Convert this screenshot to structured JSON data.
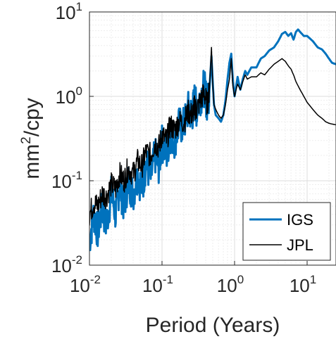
{
  "chart_data": {
    "type": "line",
    "title": "",
    "xlabel": "Period (Years)",
    "ylabel_base": "mm",
    "ylabel_exp": "2",
    "ylabel_suffix": "/cpy",
    "xscale": "log",
    "yscale": "log",
    "xlim": [
      0.01,
      25
    ],
    "ylim": [
      0.01,
      10
    ],
    "grid": true,
    "legend_location": "bottom-right",
    "x_ticks": [
      {
        "base": "10",
        "exp": "-2",
        "value": 0.01
      },
      {
        "base": "10",
        "exp": "-1",
        "value": 0.1
      },
      {
        "base": "10",
        "exp": "0",
        "value": 1
      },
      {
        "base": "10",
        "exp": "1",
        "value": 10
      }
    ],
    "y_ticks": [
      {
        "base": "10",
        "exp": "-2",
        "value": 0.01
      },
      {
        "base": "10",
        "exp": "-1",
        "value": 0.1
      },
      {
        "base": "10",
        "exp": "0",
        "value": 1
      },
      {
        "base": "10",
        "exp": "1",
        "value": 10
      }
    ],
    "series": [
      {
        "name": "IGS",
        "color": "#0072BD",
        "width": 3,
        "x": [
          0.01,
          0.0115,
          0.013,
          0.015,
          0.017,
          0.02,
          0.023,
          0.026,
          0.03,
          0.034,
          0.04,
          0.046,
          0.053,
          0.06,
          0.07,
          0.08,
          0.09,
          0.1,
          0.115,
          0.13,
          0.15,
          0.17,
          0.2,
          0.23,
          0.26,
          0.28,
          0.3,
          0.34,
          0.38,
          0.42,
          0.45,
          0.48,
          0.5,
          0.52,
          0.55,
          0.6,
          0.65,
          0.7,
          0.75,
          0.8,
          0.85,
          0.9,
          0.95,
          1.0,
          1.05,
          1.1,
          1.2,
          1.3,
          1.4,
          1.5,
          1.7,
          2.0,
          2.3,
          2.6,
          3.0,
          3.5,
          4.0,
          4.5,
          5.0,
          5.5,
          6.0,
          6.5,
          7.0,
          7.5,
          8.0,
          9.0,
          10.0,
          12.0,
          14.0,
          16.0,
          18.0,
          20.0,
          22.0,
          25.0
        ],
        "y": [
          0.02,
          0.04,
          0.025,
          0.05,
          0.03,
          0.07,
          0.04,
          0.09,
          0.05,
          0.1,
          0.07,
          0.12,
          0.08,
          0.16,
          0.11,
          0.2,
          0.15,
          0.28,
          0.2,
          0.35,
          0.3,
          0.45,
          0.45,
          0.7,
          0.6,
          0.9,
          0.7,
          1.0,
          1.3,
          0.8,
          1.2,
          3.0,
          1.5,
          0.8,
          0.6,
          0.55,
          0.5,
          0.6,
          0.9,
          1.6,
          2.5,
          3.2,
          1.5,
          1.0,
          1.3,
          1.7,
          1.2,
          1.6,
          2.0,
          1.8,
          2.2,
          2.2,
          2.8,
          3.0,
          3.5,
          3.8,
          4.5,
          5.5,
          5.8,
          5.2,
          5.6,
          4.7,
          5.8,
          6.2,
          5.8,
          5.2,
          5.2,
          4.5,
          3.8,
          3.6,
          3.2,
          2.8,
          2.5,
          2.4
        ]
      },
      {
        "name": "JPL",
        "color": "#000000",
        "width": 1.5,
        "x": [
          0.01,
          0.0115,
          0.013,
          0.015,
          0.017,
          0.02,
          0.023,
          0.026,
          0.03,
          0.034,
          0.04,
          0.046,
          0.053,
          0.06,
          0.07,
          0.08,
          0.09,
          0.1,
          0.115,
          0.13,
          0.15,
          0.17,
          0.2,
          0.23,
          0.26,
          0.28,
          0.3,
          0.34,
          0.38,
          0.42,
          0.45,
          0.48,
          0.5,
          0.52,
          0.55,
          0.6,
          0.65,
          0.7,
          0.75,
          0.8,
          0.85,
          0.9,
          0.95,
          1.0,
          1.05,
          1.1,
          1.2,
          1.3,
          1.4,
          1.5,
          1.7,
          2.0,
          2.3,
          2.6,
          3.0,
          3.5,
          4.0,
          4.5,
          5.0,
          5.5,
          6.0,
          6.5,
          7.0,
          8.0,
          9.0,
          10.0,
          12.0,
          14.0,
          16.0,
          18.0,
          20.0,
          22.0,
          25.0
        ],
        "y": [
          0.04,
          0.055,
          0.05,
          0.07,
          0.065,
          0.09,
          0.08,
          0.12,
          0.1,
          0.14,
          0.12,
          0.17,
          0.15,
          0.22,
          0.2,
          0.28,
          0.25,
          0.35,
          0.3,
          0.45,
          0.4,
          0.5,
          0.5,
          0.65,
          0.6,
          0.75,
          0.7,
          0.9,
          1.1,
          0.8,
          1.2,
          3.8,
          1.4,
          0.8,
          0.7,
          0.6,
          0.55,
          0.6,
          0.8,
          1.2,
          1.6,
          2.8,
          1.3,
          1.0,
          1.2,
          1.4,
          1.2,
          1.5,
          1.8,
          1.6,
          1.7,
          1.7,
          1.9,
          1.8,
          2.1,
          2.4,
          2.6,
          2.8,
          2.6,
          2.3,
          2.1,
          1.8,
          1.5,
          1.2,
          1.0,
          0.85,
          0.7,
          0.6,
          0.55,
          0.5,
          0.48,
          0.47,
          0.46
        ]
      }
    ]
  }
}
